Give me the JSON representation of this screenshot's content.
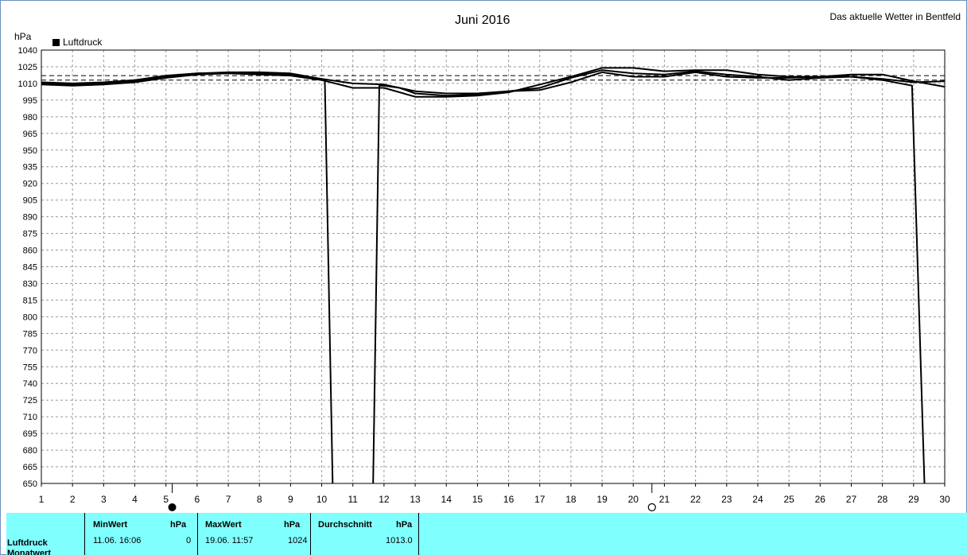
{
  "chart_data": {
    "type": "line",
    "title": "Juni 2016",
    "subtitle": "Das aktuelle Wetter in Bentfeld",
    "ylabel": "hPa",
    "xlim": [
      1,
      30
    ],
    "ylim": [
      650,
      1040
    ],
    "yticks": [
      650,
      665,
      680,
      695,
      710,
      725,
      740,
      755,
      770,
      785,
      800,
      815,
      830,
      845,
      860,
      875,
      890,
      905,
      920,
      935,
      950,
      965,
      980,
      995,
      1010,
      1025,
      1040
    ],
    "xticks": [
      1,
      2,
      3,
      4,
      5,
      6,
      7,
      8,
      9,
      10,
      11,
      12,
      13,
      14,
      15,
      16,
      17,
      18,
      19,
      20,
      21,
      22,
      23,
      24,
      25,
      26,
      27,
      28,
      29,
      30
    ],
    "grid": true,
    "legend": {
      "label": "Luftdruck",
      "color": "#000000",
      "placement": "top-left"
    },
    "reference_lines": [
      1013,
      1017
    ],
    "moon_phases": [
      {
        "day": 5.2,
        "phase": "new"
      },
      {
        "day": 20.6,
        "phase": "full"
      }
    ],
    "series": [
      {
        "name": "Luftdruck",
        "color": "#000000",
        "points": [
          [
            1,
            1009
          ],
          [
            2,
            1008
          ],
          [
            3,
            1009
          ],
          [
            4,
            1011
          ],
          [
            5,
            1015
          ],
          [
            6,
            1018
          ],
          [
            7,
            1019
          ],
          [
            8,
            1019
          ],
          [
            9,
            1018
          ],
          [
            10,
            1014
          ],
          [
            10.1,
            1012
          ],
          [
            10.35,
            650
          ],
          null,
          [
            11.65,
            650
          ],
          [
            11.85,
            1008
          ],
          [
            12,
            1008
          ],
          [
            12.5,
            1006
          ],
          [
            13,
            1001
          ],
          [
            14,
            999
          ],
          [
            15,
            1000
          ],
          [
            16,
            1003
          ],
          [
            17,
            1006
          ],
          [
            18,
            1015
          ],
          [
            19,
            1022
          ],
          [
            20,
            1019
          ],
          [
            21,
            1018
          ],
          [
            22,
            1021
          ],
          [
            23,
            1018
          ],
          [
            24,
            1016
          ],
          [
            25,
            1013
          ],
          [
            26,
            1015
          ],
          [
            27,
            1016
          ],
          [
            28,
            1013
          ],
          [
            28.95,
            1008
          ],
          [
            29.35,
            650
          ]
        ]
      },
      {
        "name": "Luftdruck",
        "color": "#000000",
        "points": [
          [
            1,
            1010
          ],
          [
            2,
            1009
          ],
          [
            3,
            1010
          ],
          [
            4,
            1012
          ],
          [
            5,
            1016
          ],
          [
            6,
            1019
          ],
          [
            7,
            1019
          ],
          [
            8,
            1018
          ],
          [
            9,
            1017
          ],
          [
            10,
            1013
          ],
          [
            11,
            1006
          ],
          [
            12,
            1006
          ],
          [
            13,
            998
          ],
          [
            14,
            998
          ],
          [
            15,
            999
          ],
          [
            16,
            1002
          ],
          [
            17,
            1009
          ],
          [
            18,
            1016
          ],
          [
            19,
            1024
          ],
          [
            20,
            1024
          ],
          [
            21,
            1021
          ],
          [
            22,
            1022
          ],
          [
            23,
            1022
          ],
          [
            24,
            1018
          ],
          [
            25,
            1016
          ],
          [
            26,
            1016
          ],
          [
            27,
            1016
          ],
          [
            28,
            1014
          ],
          [
            29,
            1011
          ],
          [
            30,
            1012
          ]
        ]
      },
      {
        "name": "Luftdruck",
        "color": "#000000",
        "points": [
          [
            1,
            1011
          ],
          [
            2,
            1010
          ],
          [
            3,
            1011
          ],
          [
            4,
            1013
          ],
          [
            5,
            1017
          ],
          [
            6,
            1019
          ],
          [
            7,
            1020
          ],
          [
            8,
            1020
          ],
          [
            9,
            1019
          ],
          [
            10,
            1014
          ],
          [
            11,
            1010
          ],
          [
            12,
            1009
          ],
          [
            13,
            1003
          ],
          [
            14,
            1001
          ],
          [
            15,
            1001
          ],
          [
            16,
            1003
          ],
          [
            17,
            1004
          ],
          [
            18,
            1011
          ],
          [
            19,
            1020
          ],
          [
            20,
            1016
          ],
          [
            21,
            1016
          ],
          [
            22,
            1020
          ],
          [
            23,
            1016
          ],
          [
            24,
            1015
          ],
          [
            25,
            1015
          ],
          [
            26,
            1016
          ],
          [
            27,
            1018
          ],
          [
            28,
            1018
          ],
          [
            29,
            1012
          ],
          [
            30,
            1007
          ]
        ]
      }
    ]
  },
  "stats": {
    "row_label": "Luftdruck",
    "row_label_partial": "Monatwert",
    "min_header": "MinWert",
    "max_header": "MaxWert",
    "avg_header": "Durchschnitt",
    "unit": "hPa",
    "min_when": "11.06.  16:06",
    "min_value": "0",
    "max_when": "19.06.  11:57",
    "max_value": "1024",
    "avg_value": "1013.0"
  }
}
